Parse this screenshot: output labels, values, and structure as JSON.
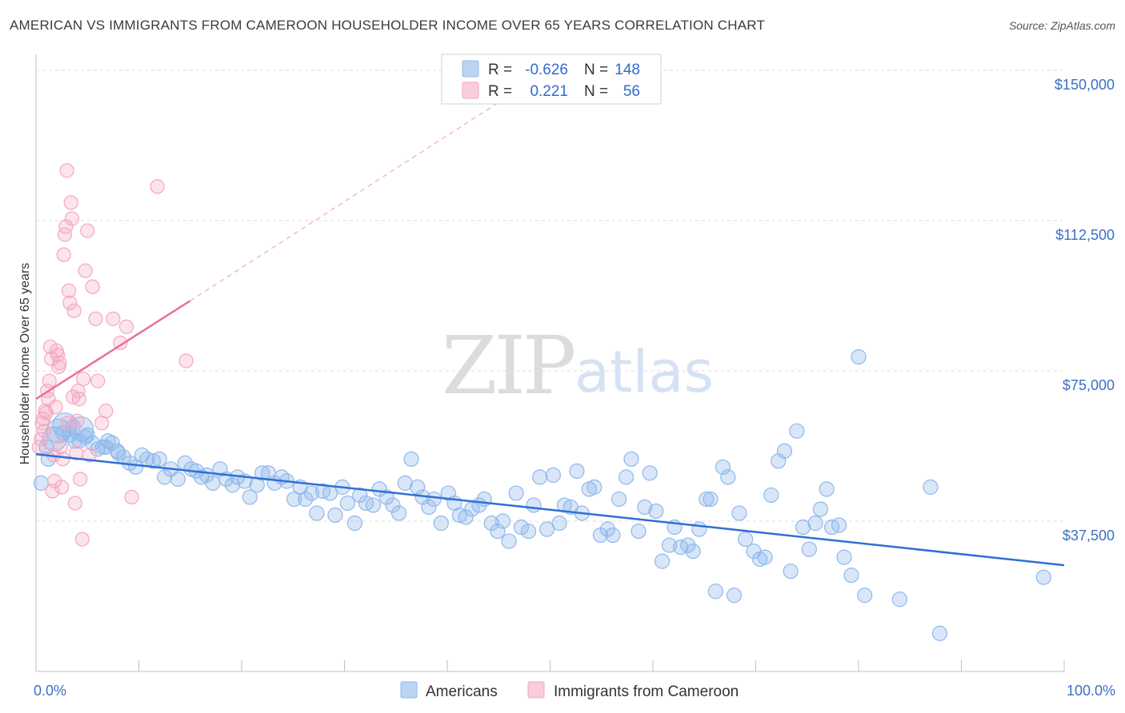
{
  "title": "AMERICAN VS IMMIGRANTS FROM CAMEROON HOUSEHOLDER INCOME OVER 65 YEARS CORRELATION CHART",
  "source": "Source: ZipAtlas.com",
  "watermark": {
    "zip": "ZIP",
    "atlas": "atlas"
  },
  "colors": {
    "americans": "#8fb8ea",
    "americans_line": "#2f6fd6",
    "cameroon": "#f4a6c0",
    "cameroon_line": "#e8709a",
    "tick_text": "#3c6fc4"
  },
  "legend": {
    "rows": [
      {
        "r_label": "R =",
        "r_value": "-0.626",
        "n_label": "N =",
        "n_value": "148"
      },
      {
        "r_label": "R =",
        "r_value": "0.221",
        "n_label": "N =",
        "n_value": "56"
      }
    ]
  },
  "chart_data": {
    "type": "scatter",
    "title": "AMERICAN VS IMMIGRANTS FROM CAMEROON HOUSEHOLDER INCOME OVER 65 YEARS CORRELATION CHART",
    "xlabel": "",
    "ylabel": "Householder Income Over 65 years",
    "xlim": [
      0,
      100
    ],
    "ylim": [
      0,
      152000
    ],
    "x_tick_labels": [
      "0.0%",
      "100.0%"
    ],
    "y_ticks": [
      37500,
      75000,
      112500,
      150000
    ],
    "y_tick_labels": [
      "$37,500",
      "$75,000",
      "$112,500",
      "$150,000"
    ],
    "grid": true,
    "series": [
      {
        "name": "Americans",
        "color": "#8fb8ea",
        "trend": {
          "x": [
            0,
            100
          ],
          "y": [
            54200,
            26500
          ],
          "dashed_extension": false
        },
        "points": [
          [
            0.5,
            47000,
            1
          ],
          [
            1.2,
            53000,
            1
          ],
          [
            1.8,
            58000,
            2
          ],
          [
            2.2,
            60000,
            2
          ],
          [
            2.8,
            61500,
            2
          ],
          [
            3.3,
            59000,
            1
          ],
          [
            3.8,
            57500,
            1
          ],
          [
            4.4,
            60500,
            2
          ],
          [
            4.8,
            58500,
            1
          ],
          [
            5.5,
            57000,
            1
          ],
          [
            6.0,
            55500,
            1
          ],
          [
            6.8,
            56000,
            1
          ],
          [
            7.4,
            57000,
            1
          ],
          [
            7.9,
            55000,
            1
          ],
          [
            8.5,
            53500,
            1
          ],
          [
            9.1,
            52000,
            1
          ],
          [
            9.7,
            51000,
            1
          ],
          [
            10.3,
            54000,
            1
          ],
          [
            10.8,
            53000,
            1
          ],
          [
            11.4,
            52500,
            1
          ],
          [
            12.0,
            53000,
            1
          ],
          [
            12.5,
            48500,
            1
          ],
          [
            13.1,
            50500,
            1
          ],
          [
            13.8,
            48000,
            1
          ],
          [
            14.5,
            52000,
            1
          ],
          [
            15.1,
            50500,
            1
          ],
          [
            15.6,
            50000,
            1
          ],
          [
            16.1,
            48500,
            1
          ],
          [
            16.6,
            49000,
            1
          ],
          [
            17.2,
            47000,
            1
          ],
          [
            17.9,
            50500,
            1
          ],
          [
            18.5,
            48000,
            1
          ],
          [
            19.1,
            46500,
            1
          ],
          [
            19.6,
            48500,
            1
          ],
          [
            20.3,
            47500,
            1
          ],
          [
            20.8,
            43500,
            1
          ],
          [
            21.5,
            46500,
            1
          ],
          [
            22.0,
            49500,
            1
          ],
          [
            22.6,
            49500,
            1
          ],
          [
            23.2,
            47000,
            1
          ],
          [
            23.9,
            48500,
            1
          ],
          [
            24.4,
            47500,
            1
          ],
          [
            25.1,
            43000,
            1
          ],
          [
            25.7,
            46000,
            1
          ],
          [
            26.2,
            43000,
            1
          ],
          [
            26.8,
            44500,
            1
          ],
          [
            27.3,
            39500,
            1
          ],
          [
            27.9,
            45000,
            1
          ],
          [
            28.6,
            44500,
            1
          ],
          [
            29.1,
            39000,
            1
          ],
          [
            29.8,
            46000,
            1
          ],
          [
            30.3,
            42000,
            1
          ],
          [
            31.0,
            37000,
            1
          ],
          [
            31.5,
            44000,
            1
          ],
          [
            32.1,
            42000,
            1
          ],
          [
            32.8,
            41500,
            1
          ],
          [
            33.4,
            45500,
            1
          ],
          [
            34.1,
            43500,
            1
          ],
          [
            34.7,
            41500,
            1
          ],
          [
            35.3,
            39500,
            1
          ],
          [
            35.9,
            47000,
            1
          ],
          [
            36.5,
            53000,
            1
          ],
          [
            37.1,
            46000,
            1
          ],
          [
            37.6,
            43500,
            1
          ],
          [
            38.2,
            41000,
            1
          ],
          [
            38.7,
            43000,
            1
          ],
          [
            39.4,
            37000,
            1
          ],
          [
            40.1,
            44500,
            1
          ],
          [
            40.7,
            42000,
            1
          ],
          [
            41.2,
            39000,
            1
          ],
          [
            41.8,
            38500,
            1
          ],
          [
            42.4,
            40500,
            1
          ],
          [
            43.1,
            41500,
            1
          ],
          [
            43.6,
            43000,
            1
          ],
          [
            44.3,
            37000,
            1
          ],
          [
            44.9,
            35000,
            1
          ],
          [
            45.4,
            37500,
            1
          ],
          [
            46.0,
            32500,
            1
          ],
          [
            46.7,
            44500,
            1
          ],
          [
            47.2,
            36000,
            1
          ],
          [
            47.9,
            35000,
            1
          ],
          [
            48.4,
            41500,
            1
          ],
          [
            49.0,
            48500,
            1
          ],
          [
            49.7,
            35500,
            1
          ],
          [
            50.3,
            49000,
            1
          ],
          [
            50.9,
            37000,
            1
          ],
          [
            51.4,
            41500,
            1
          ],
          [
            52.0,
            41000,
            1
          ],
          [
            52.6,
            50000,
            1
          ],
          [
            53.1,
            39500,
            1
          ],
          [
            53.8,
            45500,
            1
          ],
          [
            54.3,
            46000,
            1
          ],
          [
            54.9,
            34000,
            1
          ],
          [
            55.6,
            35500,
            1
          ],
          [
            56.1,
            34000,
            1
          ],
          [
            56.7,
            43000,
            1
          ],
          [
            57.4,
            48500,
            1
          ],
          [
            57.9,
            53000,
            1
          ],
          [
            58.6,
            35000,
            1
          ],
          [
            59.2,
            41000,
            1
          ],
          [
            59.7,
            49500,
            1
          ],
          [
            60.3,
            40000,
            1
          ],
          [
            60.9,
            27500,
            1
          ],
          [
            61.6,
            31500,
            1
          ],
          [
            62.1,
            36000,
            1
          ],
          [
            62.7,
            31000,
            1
          ],
          [
            63.4,
            31500,
            1
          ],
          [
            63.9,
            30000,
            1
          ],
          [
            64.5,
            35500,
            1
          ],
          [
            65.2,
            43000,
            1
          ],
          [
            65.6,
            43000,
            1
          ],
          [
            66.1,
            20000,
            1
          ],
          [
            66.8,
            51000,
            1
          ],
          [
            67.3,
            48500,
            1
          ],
          [
            67.9,
            19000,
            1
          ],
          [
            68.4,
            39500,
            1
          ],
          [
            69.0,
            33000,
            1
          ],
          [
            69.8,
            30000,
            1
          ],
          [
            70.4,
            28000,
            1
          ],
          [
            70.9,
            28500,
            1
          ],
          [
            71.5,
            44000,
            1
          ],
          [
            72.2,
            52500,
            1
          ],
          [
            72.8,
            55000,
            1
          ],
          [
            73.4,
            25000,
            1
          ],
          [
            74.0,
            60000,
            1
          ],
          [
            74.6,
            36000,
            1
          ],
          [
            75.2,
            30500,
            1
          ],
          [
            75.8,
            37000,
            1
          ],
          [
            76.3,
            40500,
            1
          ],
          [
            76.9,
            45500,
            1
          ],
          [
            77.4,
            36000,
            1
          ],
          [
            78.1,
            36500,
            1
          ],
          [
            78.6,
            28500,
            1
          ],
          [
            79.3,
            24000,
            1
          ],
          [
            80.0,
            78500,
            1
          ],
          [
            80.6,
            19000,
            1
          ],
          [
            84.0,
            18000,
            1
          ],
          [
            87.0,
            46000,
            1
          ],
          [
            87.9,
            9500,
            1
          ],
          [
            98.0,
            23500,
            1
          ],
          [
            1.0,
            56000,
            1
          ],
          [
            2.6,
            59500,
            1
          ],
          [
            3.6,
            61000,
            1
          ],
          [
            4.2,
            57500,
            1
          ],
          [
            5.0,
            59000,
            1
          ],
          [
            6.5,
            56000,
            1
          ],
          [
            7.0,
            57500,
            1
          ],
          [
            8.0,
            54500,
            1
          ]
        ]
      },
      {
        "name": "Immigrants from Cameroon",
        "color": "#f4a6c0",
        "trend": {
          "x": [
            0,
            15
          ],
          "y": [
            68000,
            92500
          ],
          "dashed_extension": true,
          "dashed_to": [
            45,
            142000
          ]
        },
        "points": [
          [
            0.3,
            56000
          ],
          [
            0.5,
            58000
          ],
          [
            0.6,
            62000
          ],
          [
            0.7,
            63000
          ],
          [
            0.8,
            60000
          ],
          [
            0.9,
            65000
          ],
          [
            1.0,
            64500
          ],
          [
            1.1,
            70000
          ],
          [
            1.2,
            68000
          ],
          [
            1.3,
            72500
          ],
          [
            1.4,
            81000
          ],
          [
            1.5,
            78000
          ],
          [
            1.6,
            45000
          ],
          [
            1.7,
            54000
          ],
          [
            1.8,
            47500
          ],
          [
            1.9,
            66000
          ],
          [
            2.0,
            80000
          ],
          [
            2.1,
            79000
          ],
          [
            2.2,
            76000
          ],
          [
            2.3,
            77000
          ],
          [
            2.4,
            56000
          ],
          [
            2.5,
            46000
          ],
          [
            2.6,
            53000
          ],
          [
            2.7,
            104000
          ],
          [
            2.8,
            109000
          ],
          [
            2.9,
            111000
          ],
          [
            3.0,
            125000
          ],
          [
            3.1,
            62000
          ],
          [
            3.2,
            95000
          ],
          [
            3.3,
            92000
          ],
          [
            3.4,
            117000
          ],
          [
            3.5,
            113000
          ],
          [
            3.6,
            68500
          ],
          [
            3.7,
            90000
          ],
          [
            3.8,
            42000
          ],
          [
            3.9,
            54500
          ],
          [
            4.0,
            62500
          ],
          [
            4.1,
            70000
          ],
          [
            4.2,
            68000
          ],
          [
            4.3,
            48000
          ],
          [
            4.5,
            33000
          ],
          [
            4.6,
            73000
          ],
          [
            4.8,
            100000
          ],
          [
            5.0,
            110000
          ],
          [
            5.2,
            54000
          ],
          [
            5.5,
            96000
          ],
          [
            5.8,
            88000
          ],
          [
            6.0,
            72500
          ],
          [
            6.4,
            62000
          ],
          [
            6.8,
            65000
          ],
          [
            7.5,
            88000
          ],
          [
            8.2,
            82000
          ],
          [
            8.8,
            86000
          ],
          [
            9.3,
            43500
          ],
          [
            11.8,
            121000
          ],
          [
            14.6,
            77500
          ]
        ]
      }
    ]
  },
  "bottom_legend": [
    {
      "label": "Americans",
      "color": "#8fb8ea"
    },
    {
      "label": "Immigrants from Cameroon",
      "color": "#f4a6c0"
    }
  ]
}
